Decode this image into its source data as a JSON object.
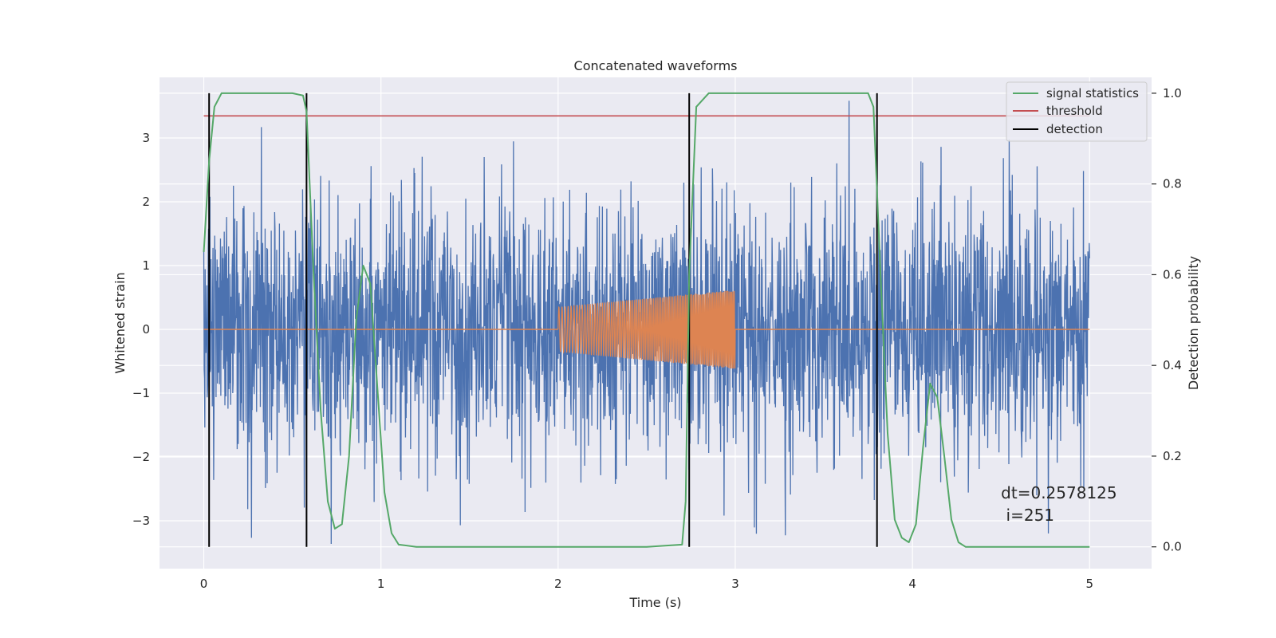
{
  "chart_data": {
    "type": "line",
    "title": "Concatenated waveforms",
    "xlabel": "Time (s)",
    "ylabel_left": "Whitened strain",
    "ylabel_right": "Detection probability",
    "xlim": [
      -0.25,
      5.35
    ],
    "ylim_left": [
      -3.75,
      3.95
    ],
    "ylim_right": [
      -0.048,
      1.035
    ],
    "xticks": [
      0,
      1,
      2,
      3,
      4,
      5
    ],
    "xtick_labels": [
      "0",
      "1",
      "2",
      "3",
      "4",
      "5"
    ],
    "yticks_left": [
      -3,
      -2,
      -1,
      0,
      1,
      2,
      3
    ],
    "ytick_labels_left": [
      "−3",
      "−2",
      "−1",
      "0",
      "1",
      "2",
      "3"
    ],
    "yticks_right": [
      0.0,
      0.2,
      0.4,
      0.6,
      0.8,
      1.0
    ],
    "ytick_labels_right": [
      "0.0",
      "0.2",
      "0.4",
      "0.6",
      "0.8",
      "1.0"
    ],
    "grid": true,
    "legend_position": "top-right",
    "colors": {
      "background": "#eaeaf2",
      "grid": "#ffffff",
      "strain": "#4c72b0",
      "waveform": "#dd8452",
      "signal_statistics": "#55a868",
      "threshold": "#c44e52",
      "detection": "#000000"
    },
    "legend": [
      "signal statistics",
      "threshold",
      "detection"
    ],
    "series": [
      {
        "name": "whitened strain",
        "axis": "left",
        "color": "#4c72b0",
        "description": "noise series, approx. range -3.4 to 3.6, x 0 to 5 s",
        "x_range": [
          0,
          5
        ],
        "y_extent": [
          -3.4,
          3.6
        ]
      },
      {
        "name": "waveform",
        "axis": "left",
        "color": "#dd8452",
        "segments": [
          {
            "x_start": 0,
            "x_end": 2,
            "amplitude": 0
          },
          {
            "x_start": 2,
            "x_end": 3,
            "amplitude_start": 0.35,
            "amplitude_end": 0.62
          },
          {
            "x_start": 3,
            "x_end": 5,
            "amplitude": 0
          }
        ]
      },
      {
        "name": "signal statistics",
        "axis": "right",
        "color": "#55a868",
        "x": [
          0.0,
          0.03,
          0.06,
          0.1,
          0.2,
          0.5,
          0.56,
          0.58,
          0.62,
          0.66,
          0.7,
          0.74,
          0.78,
          0.82,
          0.86,
          0.9,
          0.94,
          0.98,
          1.02,
          1.06,
          1.1,
          1.2,
          2.0,
          2.5,
          2.7,
          2.72,
          2.74,
          2.78,
          2.85,
          3.0,
          3.75,
          3.78,
          3.82,
          3.86,
          3.9,
          3.94,
          3.98,
          4.02,
          4.06,
          4.1,
          4.14,
          4.18,
          4.22,
          4.26,
          4.3,
          4.5,
          5.0
        ],
        "y": [
          0.65,
          0.85,
          0.97,
          1.0,
          1.0,
          1.0,
          0.995,
          0.96,
          0.6,
          0.3,
          0.1,
          0.04,
          0.05,
          0.2,
          0.5,
          0.62,
          0.58,
          0.35,
          0.12,
          0.03,
          0.005,
          0.0,
          0.0,
          0.0,
          0.005,
          0.1,
          0.6,
          0.97,
          1.0,
          1.0,
          1.0,
          0.97,
          0.6,
          0.25,
          0.06,
          0.02,
          0.01,
          0.05,
          0.22,
          0.36,
          0.33,
          0.2,
          0.06,
          0.01,
          0.0,
          0.0,
          0.0
        ]
      },
      {
        "name": "threshold",
        "axis": "right",
        "color": "#c44e52",
        "x": [
          0,
          5
        ],
        "y": [
          0.95,
          0.95
        ]
      },
      {
        "name": "detection",
        "axis": "right",
        "color": "#000000",
        "type": "vlines",
        "x": [
          0.03,
          0.58,
          2.74,
          3.8
        ],
        "y_range": [
          0.0,
          1.0
        ]
      }
    ],
    "annotation": {
      "line1": "dt=0.2578125",
      "line2": " i=251",
      "x": 4.5,
      "y_right": 0.1
    }
  }
}
